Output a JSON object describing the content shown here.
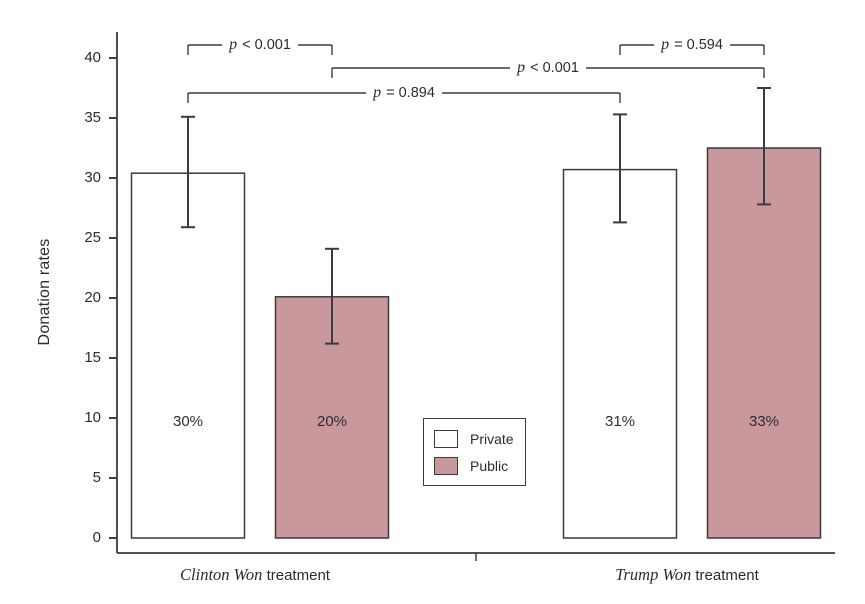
{
  "chart_data": {
    "type": "bar",
    "title": "",
    "ylabel": "Donation rates",
    "xlabel": "",
    "y_axis": {
      "ticks": [
        0,
        5,
        10,
        15,
        20,
        25,
        30,
        35,
        40
      ],
      "range": [
        0,
        42
      ]
    },
    "grid": "off",
    "legend_position": "inside-bottom-center",
    "categories": [
      {
        "italic": "Clinton Won",
        "rest": " treatment"
      },
      {
        "italic": "Trump Won",
        "rest": " treatment"
      }
    ],
    "series": [
      {
        "name": "Private",
        "color": "#ffffff",
        "values": [
          30.4,
          30.7
        ],
        "ci_low": [
          25.9,
          26.3
        ],
        "ci_high": [
          35.1,
          35.3
        ],
        "bar_labels": [
          "30%",
          "31%"
        ]
      },
      {
        "name": "Public",
        "color": "#c9989d",
        "values": [
          20.1,
          32.5
        ],
        "ci_low": [
          16.2,
          27.8
        ],
        "ci_high": [
          24.1,
          37.5
        ],
        "bar_labels": [
          "20%",
          "33%"
        ]
      }
    ],
    "significance_brackets": [
      {
        "label": "p < 0.001",
        "bars": [
          0,
          1
        ],
        "level": 1
      },
      {
        "label": "p = 0.594",
        "bars": [
          2,
          3
        ],
        "level": 1
      },
      {
        "label": "p < 0.001",
        "bars": [
          1,
          3
        ],
        "level": 2
      },
      {
        "label": "p = 0.894",
        "bars": [
          0,
          2
        ],
        "level": 3
      }
    ],
    "legend": {
      "items": [
        {
          "label": "Private",
          "color": "#ffffff"
        },
        {
          "label": "Public",
          "color": "#c9989d"
        }
      ]
    }
  },
  "colors": {
    "axis": "#3a3a43",
    "text": "#2b2b33",
    "bar_border": "#3a3a43",
    "private_fill": "#ffffff",
    "public_fill": "#c9989d",
    "background": "#ffffff"
  }
}
